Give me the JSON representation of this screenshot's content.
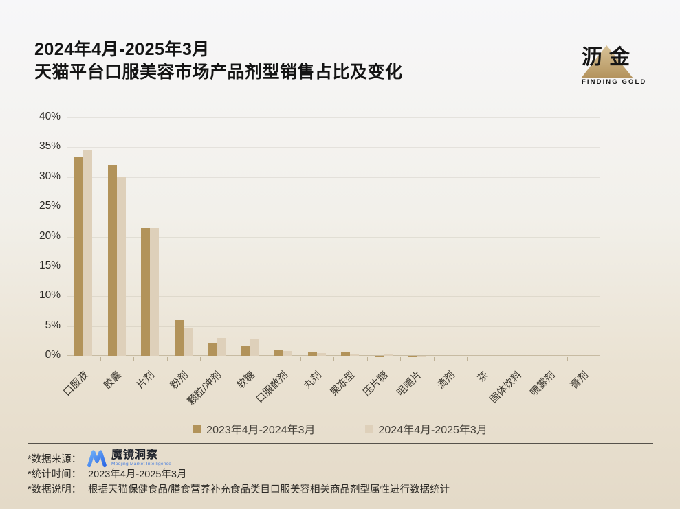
{
  "page": {
    "title_line1": "2024年4月-2025年3月",
    "title_line2": "天猫平台口服美容市场产品剂型销售占比及变化"
  },
  "brand": {
    "name": "沥金",
    "tagline": "FINDING GOLD",
    "triangle_color": "#c4a878"
  },
  "chart_data": {
    "type": "bar",
    "title": "2024年4月-2025年3月 天猫平台口服美容市场产品剂型销售占比及变化",
    "categories": [
      "口服液",
      "胶囊",
      "片剂",
      "粉剂",
      "颗粒/冲剂",
      "软糖",
      "口服散剂",
      "丸剂",
      "果冻型",
      "压片糖",
      "咀嚼片",
      "滴剂",
      "茶",
      "固体饮料",
      "喷雾剂",
      "膏剂"
    ],
    "series": [
      {
        "name": "2023年4月-2024年3月",
        "color": "#b2935a",
        "values": [
          33.3,
          32.0,
          21.5,
          6.0,
          2.2,
          1.7,
          0.9,
          0.6,
          0.6,
          0.05,
          0.05,
          0,
          0,
          0,
          0,
          0
        ]
      },
      {
        "name": "2024年4月-2025年3月",
        "color": "#ded0ba",
        "values": [
          34.5,
          30.0,
          21.5,
          4.7,
          3.0,
          2.9,
          0.8,
          0.5,
          0.25,
          0.25,
          0.05,
          0,
          0,
          0,
          0,
          0
        ]
      }
    ],
    "xlabel": "",
    "ylabel": "",
    "ylim": [
      0,
      40
    ],
    "ytick_step": 5,
    "ytick_suffix": "%",
    "grid": true,
    "legend_position": "bottom"
  },
  "footer": {
    "source_label": "*数据来源：",
    "source_logo_text": "魔镜洞察",
    "source_logo_subtext": "Moojing Market Intelligence",
    "time_label": "*统计时间：",
    "time_value": "2023年4月-2025年3月",
    "note_label": "*数据说明：",
    "note_value": "根据天猫保健食品/膳食营养补充食品类目口服美容相关商品剂型属性进行数据统计"
  }
}
